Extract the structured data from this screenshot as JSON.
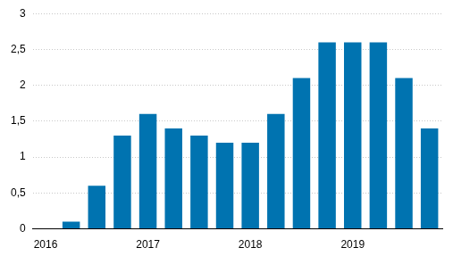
{
  "chart_data": {
    "type": "bar",
    "categories": [
      "2016",
      null,
      null,
      null,
      "2017",
      null,
      null,
      null,
      "2018",
      null,
      null,
      null,
      "2019",
      null,
      null,
      null
    ],
    "values": [
      0,
      0.1,
      0.6,
      1.3,
      1.6,
      1.4,
      1.3,
      1.2,
      1.2,
      1.6,
      2.1,
      2.6,
      2.6,
      2.6,
      2.1,
      1.4
    ],
    "color": "#0073b0",
    "ylim": [
      0,
      3
    ],
    "yticks": [
      0,
      {
        "value": 0.5,
        "label": "0,5"
      },
      1,
      {
        "value": 1.5,
        "label": "1,5"
      },
      2,
      {
        "value": 2.5,
        "label": "2,5"
      },
      3
    ],
    "grid": true
  }
}
